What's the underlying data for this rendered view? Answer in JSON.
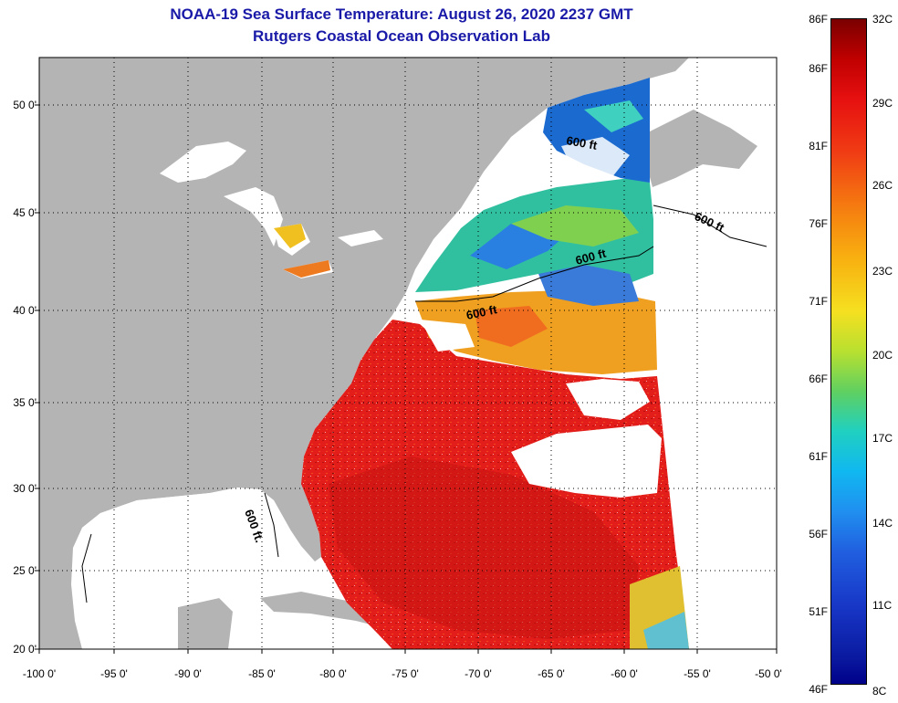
{
  "header": {
    "title_line1": "NOAA-19 Sea Surface Temperature:  August 26, 2020 2237 GMT",
    "title_line2": "Rutgers Coastal Ocean Observation Lab"
  },
  "map": {
    "latitude_labels": [
      "50 0'",
      "45 0'",
      "40 0'",
      "35 0'",
      "30 0'",
      "25 0'",
      "20 0'"
    ],
    "longitude_labels": [
      "-100 0'",
      "-95 0'",
      "-90 0'",
      "-85 0'",
      "-80 0'",
      "-75 0'",
      "-70 0'",
      "-65 0'",
      "-60 0'",
      "-55 0'",
      "-50 0'"
    ],
    "isobath_label": "600 ft",
    "isobath_label_alt": "600 ft.",
    "colors": {
      "land": "#b4b4b4",
      "cloud_or_no_data": "#ffffff",
      "warm_water": "#e8201c",
      "hot_water": "#c81010",
      "cool_water": "#2a9de0",
      "mid_water": "#f2b020"
    }
  },
  "colorbar": {
    "celsius_labels": [
      "32C",
      "29C",
      "26C",
      "23C",
      "20C",
      "17C",
      "14C",
      "11C",
      "8C"
    ],
    "fahrenheit_labels": [
      "86F",
      "81F",
      "76F",
      "71F",
      "66F",
      "61F",
      "56F",
      "51F",
      "46F"
    ],
    "min_c": 8,
    "max_c": 32
  }
}
